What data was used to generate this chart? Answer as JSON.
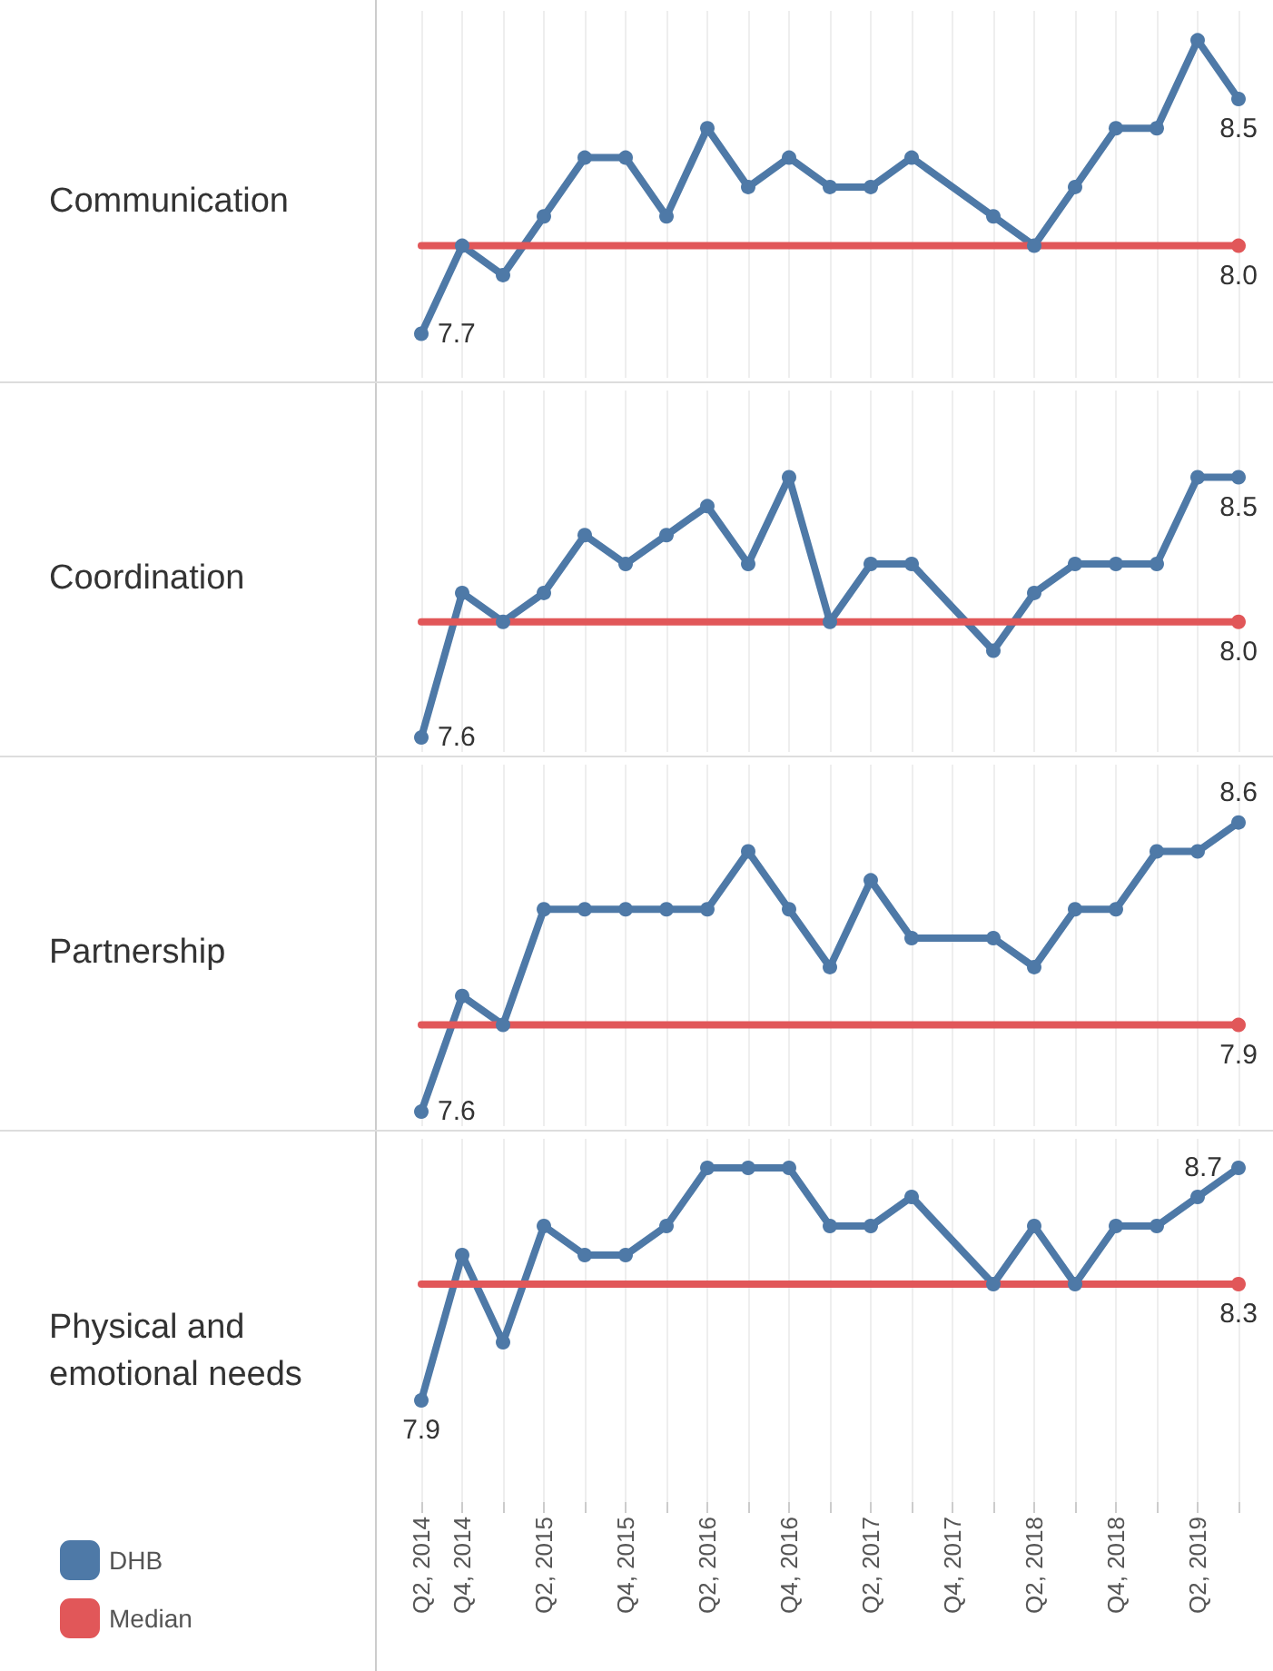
{
  "chart_data": [
    {
      "type": "line",
      "title": "Communication",
      "categories": [
        null,
        null,
        null,
        null,
        null,
        null,
        null,
        null,
        null,
        null,
        null,
        null,
        null,
        null,
        null,
        null,
        null,
        null,
        null,
        null,
        null
      ],
      "series": [
        {
          "color": "#4e79a7",
          "marker": "circle",
          "values": [
            7.7,
            8.0,
            7.9,
            8.1,
            8.3,
            8.3,
            8.1,
            8.4,
            8.2,
            8.3,
            8.2,
            8.2,
            8.3,
            null,
            8.1,
            8.0,
            8.2,
            8.4,
            8.4,
            8.7,
            8.5
          ],
          "value_labels": [
            "7.7",
            null,
            null,
            null,
            null,
            null,
            null,
            null,
            null,
            null,
            null,
            null,
            null,
            null,
            null,
            null,
            null,
            null,
            null,
            null,
            "8.5"
          ]
        },
        {
          "color": "#e15759",
          "marker": "none",
          "values": [
            8.0,
            8.0,
            8.0,
            8.0,
            8.0,
            8.0,
            8.0,
            8.0,
            8.0,
            8.0,
            8.0,
            8.0,
            8.0,
            8.0,
            8.0,
            8.0,
            8.0,
            8.0,
            8.0,
            8.0,
            8.0
          ],
          "value_labels": [
            null,
            null,
            null,
            null,
            null,
            null,
            null,
            null,
            null,
            null,
            null,
            null,
            null,
            null,
            null,
            null,
            null,
            null,
            null,
            null,
            "8.0"
          ]
        }
      ],
      "ylim": [
        7.55,
        8.8
      ],
      "grid": "x",
      "tick_labels": false,
      "legend": false
    },
    {
      "type": "line",
      "title": "Coordination",
      "categories": [
        null,
        null,
        null,
        null,
        null,
        null,
        null,
        null,
        null,
        null,
        null,
        null,
        null,
        null,
        null,
        null,
        null,
        null,
        null,
        null,
        null
      ],
      "series": [
        {
          "color": "#4e79a7",
          "marker": "circle",
          "values": [
            7.6,
            8.1,
            8.0,
            8.1,
            8.3,
            8.2,
            8.3,
            8.4,
            8.2,
            8.5,
            8.0,
            8.2,
            8.2,
            null,
            7.9,
            8.1,
            8.2,
            8.2,
            8.2,
            8.5,
            8.5
          ],
          "value_labels": [
            "7.6",
            null,
            null,
            null,
            null,
            null,
            null,
            null,
            null,
            null,
            null,
            null,
            null,
            null,
            null,
            null,
            null,
            null,
            null,
            null,
            "8.5"
          ]
        },
        {
          "color": "#e15759",
          "marker": "none",
          "values": [
            8.0,
            8.0,
            8.0,
            8.0,
            8.0,
            8.0,
            8.0,
            8.0,
            8.0,
            8.0,
            8.0,
            8.0,
            8.0,
            8.0,
            8.0,
            8.0,
            8.0,
            8.0,
            8.0,
            8.0,
            8.0
          ],
          "value_labels": [
            null,
            null,
            null,
            null,
            null,
            null,
            null,
            null,
            null,
            null,
            null,
            null,
            null,
            null,
            null,
            null,
            null,
            null,
            null,
            null,
            "8.0"
          ]
        }
      ],
      "ylim": [
        7.55,
        8.8
      ],
      "grid": "x",
      "tick_labels": false,
      "legend": false
    },
    {
      "type": "line",
      "title": "Partnership",
      "categories": [
        null,
        null,
        null,
        null,
        null,
        null,
        null,
        null,
        null,
        null,
        null,
        null,
        null,
        null,
        null,
        null,
        null,
        null,
        null,
        null,
        null
      ],
      "series": [
        {
          "color": "#4e79a7",
          "marker": "circle",
          "values": [
            7.6,
            8.0,
            7.9,
            8.3,
            8.3,
            8.3,
            8.3,
            8.3,
            8.5,
            8.3,
            8.1,
            8.4,
            8.2,
            null,
            8.2,
            8.1,
            8.3,
            8.3,
            8.5,
            8.5,
            8.6
          ],
          "value_labels": [
            "7.6",
            null,
            null,
            null,
            null,
            null,
            null,
            null,
            null,
            null,
            null,
            null,
            null,
            null,
            null,
            null,
            null,
            null,
            null,
            null,
            "8.6"
          ]
        },
        {
          "color": "#e15759",
          "marker": "none",
          "values": [
            7.9,
            7.9,
            7.9,
            7.9,
            7.9,
            7.9,
            7.9,
            7.9,
            7.9,
            7.9,
            7.9,
            7.9,
            7.9,
            7.9,
            7.9,
            7.9,
            7.9,
            7.9,
            7.9,
            7.9,
            7.9
          ],
          "value_labels": [
            null,
            null,
            null,
            null,
            null,
            null,
            null,
            null,
            null,
            null,
            null,
            null,
            null,
            null,
            null,
            null,
            null,
            null,
            null,
            null,
            "7.9"
          ]
        }
      ],
      "ylim": [
        7.55,
        8.8
      ],
      "grid": "x",
      "tick_labels": false,
      "legend": false
    },
    {
      "type": "line",
      "title": "Physical and emotional needs",
      "categories": [
        "Q2, 2014",
        "Q4, 2014",
        null,
        "Q2, 2015",
        null,
        "Q4, 2015",
        null,
        "Q2, 2016",
        null,
        "Q4, 2016",
        null,
        "Q2, 2017",
        null,
        "Q4, 2017",
        null,
        "Q2, 2018",
        null,
        "Q4, 2018",
        null,
        "Q2, 2019",
        null
      ],
      "series": [
        {
          "name": "DHB",
          "color": "#4e79a7",
          "marker": "circle",
          "values": [
            7.9,
            8.4,
            8.1,
            8.5,
            8.4,
            8.4,
            8.5,
            8.7,
            8.7,
            8.7,
            8.5,
            8.5,
            8.6,
            null,
            8.3,
            8.5,
            8.3,
            8.5,
            8.5,
            8.6,
            8.7
          ],
          "value_labels": [
            "7.9",
            null,
            null,
            null,
            null,
            null,
            null,
            null,
            null,
            null,
            null,
            null,
            null,
            null,
            null,
            null,
            null,
            null,
            null,
            null,
            "8.7"
          ]
        },
        {
          "name": "Median",
          "color": "#e15759",
          "marker": "none",
          "values": [
            8.3,
            8.3,
            8.3,
            8.3,
            8.3,
            8.3,
            8.3,
            8.3,
            8.3,
            8.3,
            8.3,
            8.3,
            8.3,
            8.3,
            8.3,
            8.3,
            8.3,
            8.3,
            8.3,
            8.3,
            8.3
          ],
          "value_labels": [
            null,
            null,
            null,
            null,
            null,
            null,
            null,
            null,
            null,
            null,
            null,
            null,
            null,
            null,
            null,
            null,
            null,
            null,
            null,
            null,
            "8.3"
          ]
        }
      ],
      "ylim": [
        7.55,
        8.8
      ],
      "grid": "x",
      "tick_labels": "x",
      "legend": "bottom left"
    }
  ]
}
